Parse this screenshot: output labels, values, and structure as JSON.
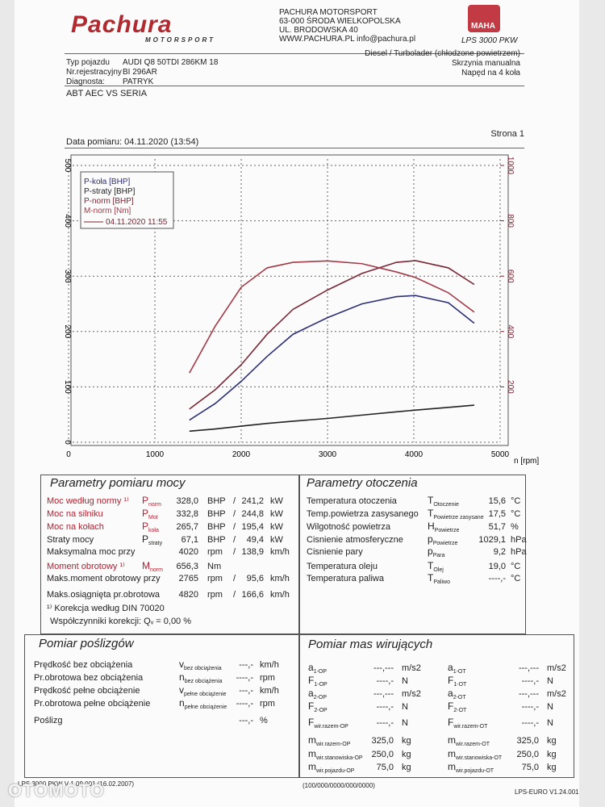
{
  "header": {
    "brand": "Pachura",
    "brand_sub": "MOTORSPORT",
    "company_lines": [
      "PACHURA MOTORSPORT",
      "63-000 ŚRODA WIELKOPOLSKA",
      "UL. BRODOWSKA 40",
      "WWW.PACHURA.PL info@pachura.pl"
    ],
    "cert_logo": "MAHA",
    "cert": "LPS 3000 PKW"
  },
  "vehicle": {
    "rows": [
      {
        "label": "Typ pojazdu",
        "value": "AUDI Q8 50TDI 286KM 18"
      },
      {
        "label": "Nr.rejestracyjny",
        "value": "BI 296AR"
      },
      {
        "label": "Diagnosta:",
        "value": "PATRYK"
      }
    ],
    "details": [
      "Diesel / Turbolader (chłodzone powietrzem)",
      "Skrzynia manualna",
      "Napęd na 4 koła"
    ],
    "note": "ABT AEC VS SERIA",
    "page": "Strona 1",
    "date": "Data pomiaru: 04.11.2020 (13:54)"
  },
  "chart_data": {
    "type": "line",
    "x_label": "n [rpm]",
    "legend_date": "04.11.2020 11:55",
    "x": [
      1400,
      1700,
      2000,
      2300,
      2600,
      3000,
      3400,
      3800,
      4020,
      4400,
      4700
    ],
    "series": [
      {
        "name": "P-koła [BHP]",
        "color": "#2c2f78",
        "values": [
          40,
          70,
          110,
          155,
          195,
          225,
          250,
          263,
          265,
          252,
          215
        ]
      },
      {
        "name": "P-straty [BHP]",
        "color": "#222222",
        "values": [
          20,
          24,
          29,
          34,
          38,
          43,
          49,
          55,
          58,
          63,
          67
        ]
      },
      {
        "name": "P-norm [BHP]",
        "color": "#7a2636",
        "values": [
          60,
          95,
          140,
          195,
          240,
          275,
          305,
          325,
          328,
          315,
          285
        ]
      },
      {
        "name": "M-norm [Nm]",
        "color": "#a33a48",
        "axis": "y2",
        "values": [
          250,
          420,
          560,
          630,
          650,
          655,
          645,
          615,
          595,
          540,
          470
        ]
      }
    ],
    "xlim": [
      0,
      5000
    ],
    "xticks": [
      0,
      1000,
      2000,
      3000,
      4000,
      5000
    ],
    "ylim": [
      0,
      500
    ],
    "yticks": [
      0,
      100,
      200,
      300,
      400,
      500
    ],
    "y2lim": [
      0,
      1000
    ],
    "y2ticks": [
      200,
      400,
      600,
      800,
      1000
    ],
    "grid": true
  },
  "power": {
    "title": "Parametry pomiaru mocy",
    "rows": [
      {
        "label": "Moc według normy ¹⁾",
        "symbol": "P",
        "sub": "norm",
        "value": "328,0",
        "unit": "BHP",
        "sep": "/",
        "value2": "241,2",
        "unit2": "kW",
        "emphasis": true
      },
      {
        "label": "Moc na silniku",
        "symbol": "P",
        "sub": "Mot",
        "value": "332,8",
        "unit": "BHP",
        "sep": "/",
        "value2": "244,8",
        "unit2": "kW",
        "emphasis": true
      },
      {
        "label": "Moc na kołach",
        "symbol": "P",
        "sub": "koła",
        "value": "265,7",
        "unit": "BHP",
        "sep": "/",
        "value2": "195,4",
        "unit2": "kW",
        "emphasis": true
      },
      {
        "label": "Straty mocy",
        "symbol": "P",
        "sub": "straty",
        "value": "67,1",
        "unit": "BHP",
        "sep": "/",
        "value2": "49,4",
        "unit2": "kW"
      },
      {
        "label": "Maksymalna moc przy",
        "value": "4020",
        "unit": "rpm",
        "sep": "/",
        "value2": "138,9",
        "unit2": "km/h"
      },
      {
        "label": "Moment obrotowy ¹⁾",
        "symbol": "M",
        "sub": "norm",
        "value": "656,3",
        "unit": "Nm",
        "emphasis": true
      },
      {
        "label": "Maks.moment obrotowy przy",
        "value": "2765",
        "unit": "rpm",
        "sep": "/",
        "value2": "95,6",
        "unit2": "km/h"
      },
      {
        "label": "Maks.osiągnięta pr.obrotowa",
        "value": "4820",
        "unit": "rpm",
        "sep": "/",
        "value2": "166,6",
        "unit2": "km/h"
      }
    ],
    "footnotes": [
      "¹⁾ Korekcja według DIN 70020",
      "Współczynniki korekcji: Qᵥ = 0,00 %"
    ]
  },
  "ambient": {
    "title": "Parametry otoczenia",
    "rows": [
      {
        "label": "Temperatura otoczenia",
        "symbol": "T",
        "sub": "Otoczenie",
        "value": "15,6",
        "unit": "°C"
      },
      {
        "label": "Temp.powietrza zasysanego",
        "symbol": "T",
        "sub": "Powietrze zasysane",
        "value": "17,5",
        "unit": "°C"
      },
      {
        "label": "Wilgotność powietrza",
        "symbol": "H",
        "sub": "Powietrze",
        "value": "51,7",
        "unit": "%"
      },
      {
        "label": "Cisnienie atmosferyczne",
        "symbol": "p",
        "sub": "Powietrze",
        "value": "1029,1",
        "unit": "hPa"
      },
      {
        "label": "Cisnienie pary",
        "symbol": "p",
        "sub": "Para",
        "value": "9,2",
        "unit": "hPa"
      },
      {
        "label": "Temperatura oleju",
        "symbol": "T",
        "sub": "Olej",
        "value": "19,0",
        "unit": "°C"
      },
      {
        "label": "Temperatura paliwa",
        "symbol": "T",
        "sub": "Paliwo",
        "value": "----,-",
        "unit": "°C"
      }
    ]
  },
  "slip": {
    "title": "Pomiar poślizgów",
    "rows": [
      {
        "label": "Prędkość bez obciążenia",
        "symbol": "v",
        "sub": "bez obciążenia",
        "value": "---,-",
        "unit": "km/h"
      },
      {
        "label": "Pr.obrotowa bez obciążenia",
        "symbol": "n",
        "sub": "bez obciążenia",
        "value": "----,-",
        "unit": "rpm"
      },
      {
        "label": "Prędkość pełne obciążenie",
        "symbol": "v",
        "sub": "pełne obciążenie",
        "value": "---,-",
        "unit": "km/h"
      },
      {
        "label": "Pr.obrotowa pełne obciążenie",
        "symbol": "n",
        "sub": "pełne obciążenie",
        "value": "----,-",
        "unit": "rpm"
      },
      {
        "label": "Poślizg",
        "value": "---,-",
        "unit": "%"
      }
    ]
  },
  "masses": {
    "title": "Pomiar mas wirujących",
    "left": [
      {
        "symbol": "a",
        "sub": "1-OP",
        "value": "---,---",
        "unit": "m/s2"
      },
      {
        "symbol": "F",
        "sub": "1-OP",
        "value": "----,-",
        "unit": "N"
      },
      {
        "symbol": "a",
        "sub": "2-OP",
        "value": "---,---",
        "unit": "m/s2"
      },
      {
        "symbol": "F",
        "sub": "2-OP",
        "value": "----,-",
        "unit": "N"
      },
      {
        "symbol": "F",
        "sub": "wir.razem-OP",
        "value": "----,-",
        "unit": "N"
      },
      {
        "symbol": "m",
        "sub": "wir.razem-OP",
        "value": "325,0",
        "unit": "kg"
      },
      {
        "symbol": "m",
        "sub": "wir.stanowiska-OP",
        "value": "250,0",
        "unit": "kg"
      },
      {
        "symbol": "m",
        "sub": "wir.pojazdu-OP",
        "value": "75,0",
        "unit": "kg"
      }
    ],
    "right": [
      {
        "symbol": "a",
        "sub": "1-OT",
        "value": "---,---",
        "unit": "m/s2"
      },
      {
        "symbol": "F",
        "sub": "1-OT",
        "value": "----,-",
        "unit": "N"
      },
      {
        "symbol": "a",
        "sub": "2-OT",
        "value": "---,---",
        "unit": "m/s2"
      },
      {
        "symbol": "F",
        "sub": "2-OT",
        "value": "----,-",
        "unit": "N"
      },
      {
        "symbol": "F",
        "sub": "wir.razem-OT",
        "value": "----,-",
        "unit": "N"
      },
      {
        "symbol": "m",
        "sub": "wir.razem-OT",
        "value": "325,0",
        "unit": "kg"
      },
      {
        "symbol": "m",
        "sub": "wir.stanowiska-OT",
        "value": "250,0",
        "unit": "kg"
      },
      {
        "symbol": "m",
        "sub": "wir.pojazdu-OT",
        "value": "75,0",
        "unit": "kg"
      }
    ]
  },
  "footer": {
    "left": "LPS 3000 PKW V 1.09.001 (16.02.2007)",
    "center": "(100/000/0000/000/0000)",
    "right": "LPS-EURO V1.24.001"
  },
  "watermark": "OTOMOTO"
}
